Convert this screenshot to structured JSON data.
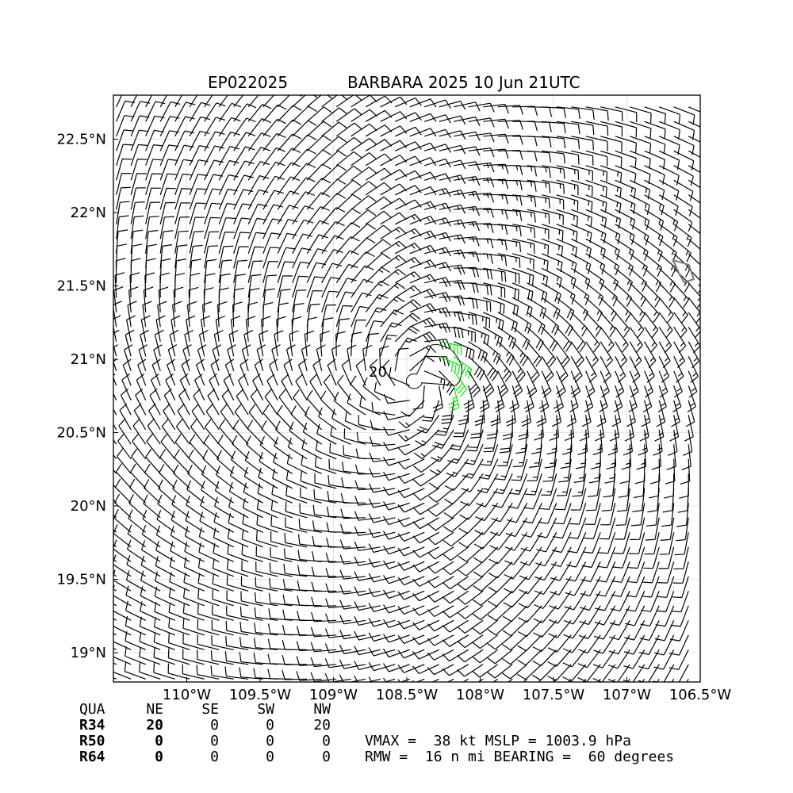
{
  "chart_data": {
    "type": "wind-barb-map",
    "title_left": "EP022025",
    "title_right": "BARBARA 2025 10 Jun 21UTC",
    "xlim": [
      -110.5,
      -106.5
    ],
    "ylim": [
      18.8,
      22.8
    ],
    "x_ticks": [
      {
        "value": -110.0,
        "label": "110°W"
      },
      {
        "value": -109.5,
        "label": "109.5°W"
      },
      {
        "value": -109.0,
        "label": "109°W"
      },
      {
        "value": -108.5,
        "label": "108.5°W"
      },
      {
        "value": -108.0,
        "label": "108°W"
      },
      {
        "value": -107.5,
        "label": "107.5°W"
      },
      {
        "value": -107.0,
        "label": "107°W"
      },
      {
        "value": -106.5,
        "label": "106.5°W"
      }
    ],
    "y_ticks": [
      {
        "value": 19.0,
        "label": "19°N"
      },
      {
        "value": 19.5,
        "label": "19.5°N"
      },
      {
        "value": 20.0,
        "label": "20°N"
      },
      {
        "value": 20.5,
        "label": "20.5°N"
      },
      {
        "value": 21.0,
        "label": "21°N"
      },
      {
        "value": 21.5,
        "label": "21.5°N"
      },
      {
        "value": 22.0,
        "label": "22°N"
      },
      {
        "value": 22.5,
        "label": "22.5°N"
      }
    ],
    "grid": true,
    "storm_center": {
      "lon": -108.45,
      "lat": 20.85
    },
    "vmax_kt": 38,
    "rmw_nmi": 16,
    "bearing_deg": 60,
    "max_wind_offset_deg": 60,
    "wind_speed_colors": {
      "below_34": "#000000",
      "34_to_50": "#00ee00",
      "50_to_64": "#ffa500"
    },
    "isotach_label": "20",
    "isotach_kt": 20,
    "coastline_color": "#808080"
  },
  "table": {
    "header": [
      "QUA",
      "NE",
      "SE",
      "SW",
      "NW"
    ],
    "rows": [
      {
        "label": "R34",
        "values": [
          "20",
          "0",
          "0",
          "20"
        ]
      },
      {
        "label": "R50",
        "values": [
          "0",
          "0",
          "0",
          "0"
        ]
      },
      {
        "label": "R64",
        "values": [
          "0",
          "0",
          "0",
          "0"
        ]
      }
    ]
  },
  "summary": {
    "line1": "VMAX =  38 kt MSLP = 1003.9 hPa",
    "line2": "RMW =  16 n mi BEARING =  60 degrees"
  }
}
